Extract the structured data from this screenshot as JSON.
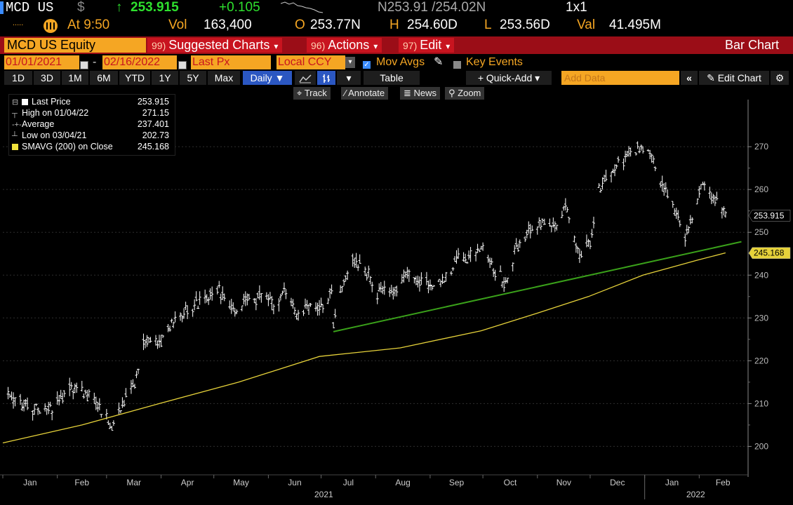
{
  "quote": {
    "ticker": "MCD US",
    "currency": "$",
    "arrow": "↑",
    "last": "253.915",
    "change": "+0.105",
    "bid_ask": "N253.91 /254.02N",
    "size": "1x1",
    "time_label": "At 9:50",
    "vol_label": "Vol",
    "vol_value": "163,400",
    "open_label": "O",
    "open_value": "253.77N",
    "high_label": "H",
    "high_value": "254.60D",
    "low_label": "L",
    "low_value": "253.56D",
    "val_label": "Val",
    "val_value": "41.495M"
  },
  "toolbar": {
    "security": "MCD US Equity",
    "menus": [
      {
        "num": "99)",
        "label": "Suggested Charts"
      },
      {
        "num": "96)",
        "label": "Actions"
      },
      {
        "num": "97)",
        "label": "Edit"
      }
    ],
    "chart_type": "Bar Chart"
  },
  "settings": {
    "start_date": "01/01/2021",
    "end_date": "02/16/2022",
    "field": "Last Px",
    "currency": "Local CCY",
    "mov_avgs_label": "Mov Avgs",
    "key_events_label": "Key Events"
  },
  "periods": [
    "1D",
    "3D",
    "1M",
    "6M",
    "YTD",
    "1Y",
    "5Y",
    "Max"
  ],
  "frequency": "Daily",
  "table_label": "Table",
  "quick_add_label": "+ Quick-Add",
  "add_data_placeholder": "Add Data",
  "edit_chart_label": "Edit Chart",
  "tools": [
    "Track",
    "Annotate",
    "News",
    "Zoom"
  ],
  "legend": [
    {
      "label": "Last Price",
      "value": "253.915"
    },
    {
      "label": "High on 01/04/22",
      "value": "271.15"
    },
    {
      "label": "Average",
      "value": "237.401"
    },
    {
      "label": "Low on 03/04/21",
      "value": "202.73"
    },
    {
      "label": "SMAVG (200)  on Close",
      "value": "245.168"
    }
  ],
  "colors": {
    "price_bars": "#ffffff",
    "sma": "#e6d23a",
    "trendline": "#3aa11a",
    "accent": "#f5a623",
    "toolbar_red": "#9b0d17"
  },
  "chart_data": {
    "type": "bar",
    "subtype": "ohlc",
    "x_axis": {
      "months": [
        "Jan",
        "Feb",
        "Mar",
        "Apr",
        "May",
        "Jun",
        "Jul",
        "Aug",
        "Sep",
        "Oct",
        "Nov",
        "Dec",
        "Jan",
        "Feb"
      ],
      "year_labels": [
        "2021",
        "2022"
      ],
      "range": [
        "2021-01-01",
        "2022-02-16"
      ]
    },
    "y_axis": {
      "ticks": [
        200,
        210,
        220,
        230,
        240,
        250,
        260,
        270
      ],
      "ylim": [
        194.5,
        281
      ],
      "side": "right",
      "tick_labels": [
        "200",
        "210",
        "220",
        "230",
        "240",
        "250",
        "260",
        "270"
      ]
    },
    "last_price_tag": "253.915",
    "sma_tag": "245.168",
    "price_anchors": [
      [
        "2021-01-04",
        212
      ],
      [
        "2021-01-12",
        210
      ],
      [
        "2021-01-20",
        209
      ],
      [
        "2021-01-29",
        209
      ],
      [
        "2021-02-08",
        214
      ],
      [
        "2021-02-16",
        213
      ],
      [
        "2021-02-22",
        211
      ],
      [
        "2021-03-04",
        205
      ],
      [
        "2021-03-10",
        210
      ],
      [
        "2021-03-17",
        215
      ],
      [
        "2021-03-22",
        224
      ],
      [
        "2021-03-31",
        224
      ],
      [
        "2021-04-06",
        228
      ],
      [
        "2021-04-13",
        231
      ],
      [
        "2021-04-20",
        233
      ],
      [
        "2021-04-28",
        235
      ],
      [
        "2021-05-04",
        236
      ],
      [
        "2021-05-12",
        232
      ],
      [
        "2021-05-20",
        234
      ],
      [
        "2021-05-28",
        235
      ],
      [
        "2021-06-04",
        233
      ],
      [
        "2021-06-10",
        236
      ],
      [
        "2021-06-17",
        231
      ],
      [
        "2021-06-24",
        233
      ],
      [
        "2021-06-30",
        233
      ],
      [
        "2021-07-07",
        236
      ],
      [
        "2021-07-08",
        229
      ],
      [
        "2021-07-13",
        237
      ],
      [
        "2021-07-19",
        244
      ],
      [
        "2021-07-26",
        242
      ],
      [
        "2021-08-02",
        236
      ],
      [
        "2021-08-10",
        236
      ],
      [
        "2021-08-18",
        240
      ],
      [
        "2021-08-25",
        238
      ],
      [
        "2021-09-02",
        238
      ],
      [
        "2021-09-10",
        240
      ],
      [
        "2021-09-17",
        244
      ],
      [
        "2021-09-24",
        244
      ],
      [
        "2021-10-01",
        247
      ],
      [
        "2021-10-08",
        241
      ],
      [
        "2021-10-14",
        238
      ],
      [
        "2021-10-20",
        246
      ],
      [
        "2021-10-28",
        251
      ],
      [
        "2021-11-04",
        252
      ],
      [
        "2021-11-12",
        252
      ],
      [
        "2021-11-18",
        256
      ],
      [
        "2021-11-24",
        245
      ],
      [
        "2021-12-01",
        247
      ],
      [
        "2021-12-06",
        260
      ],
      [
        "2021-12-14",
        265
      ],
      [
        "2021-12-22",
        268
      ],
      [
        "2021-12-30",
        270
      ],
      [
        "2022-01-04",
        269
      ],
      [
        "2022-01-10",
        261
      ],
      [
        "2022-01-18",
        256
      ],
      [
        "2022-01-24",
        249
      ],
      [
        "2022-01-28",
        253
      ],
      [
        "2022-02-03",
        261
      ],
      [
        "2022-02-09",
        258
      ],
      [
        "2022-02-16",
        254
      ]
    ],
    "sma_anchors": [
      [
        "2021-01-01",
        200.8
      ],
      [
        "2021-02-15",
        205
      ],
      [
        "2021-03-31",
        210
      ],
      [
        "2021-05-15",
        215
      ],
      [
        "2021-06-30",
        221
      ],
      [
        "2021-08-15",
        223
      ],
      [
        "2021-09-30",
        227
      ],
      [
        "2021-10-31",
        231
      ],
      [
        "2021-11-30",
        235
      ],
      [
        "2021-12-31",
        240
      ],
      [
        "2022-01-31",
        243.5
      ],
      [
        "2022-02-16",
        245.2
      ]
    ],
    "trendline": {
      "from": [
        "2021-07-08",
        226.8
      ],
      "to": [
        "2022-02-25",
        247.8
      ]
    }
  }
}
